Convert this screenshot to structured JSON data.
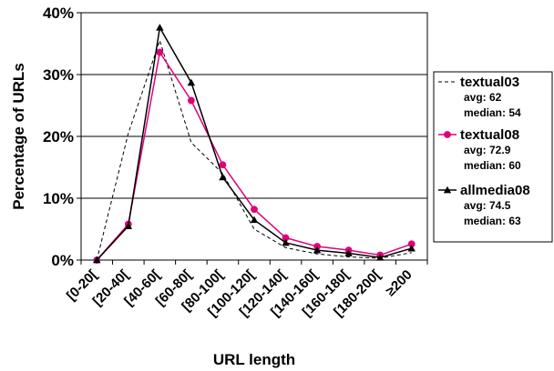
{
  "chart_data": {
    "type": "line",
    "title": "",
    "xlabel": "URL length",
    "ylabel": "Percentage of URLs",
    "ylim": [
      0,
      40
    ],
    "yticks": [
      "0%",
      "10%",
      "20%",
      "30%",
      "40%"
    ],
    "categories": [
      "[0-20[",
      "[20-40[",
      "[40-60[",
      "[60-80[",
      "[80-100[",
      "[100-120[",
      "[120-140[",
      "[140-160[",
      "[160-180[",
      "[180-200[",
      "≥200"
    ],
    "grid": "horizontal",
    "legend_position": "right",
    "series": [
      {
        "name": "textual03",
        "avg": "avg: 62",
        "median": "median: 54",
        "color": "#000000",
        "line_style": "dashed",
        "marker": "none",
        "values": [
          0,
          20.5,
          35.5,
          19,
          14,
          5,
          2,
          1,
          0.5,
          0.3,
          1.2
        ]
      },
      {
        "name": "textual08",
        "avg": "avg: 72.9",
        "median": "median: 60",
        "color": "#e0007a",
        "line_style": "solid",
        "marker": "circle",
        "values": [
          0,
          5.8,
          33.6,
          25.8,
          15.4,
          8.2,
          3.6,
          2.2,
          1.6,
          0.8,
          2.6
        ]
      },
      {
        "name": "allmedia08",
        "avg": "avg: 74.5",
        "median": "median: 63",
        "color": "#000000",
        "line_style": "solid",
        "marker": "triangle",
        "values": [
          0,
          5.5,
          37.6,
          28.7,
          13.4,
          6.5,
          2.8,
          1.6,
          1.1,
          0.4,
          1.9
        ]
      }
    ]
  }
}
